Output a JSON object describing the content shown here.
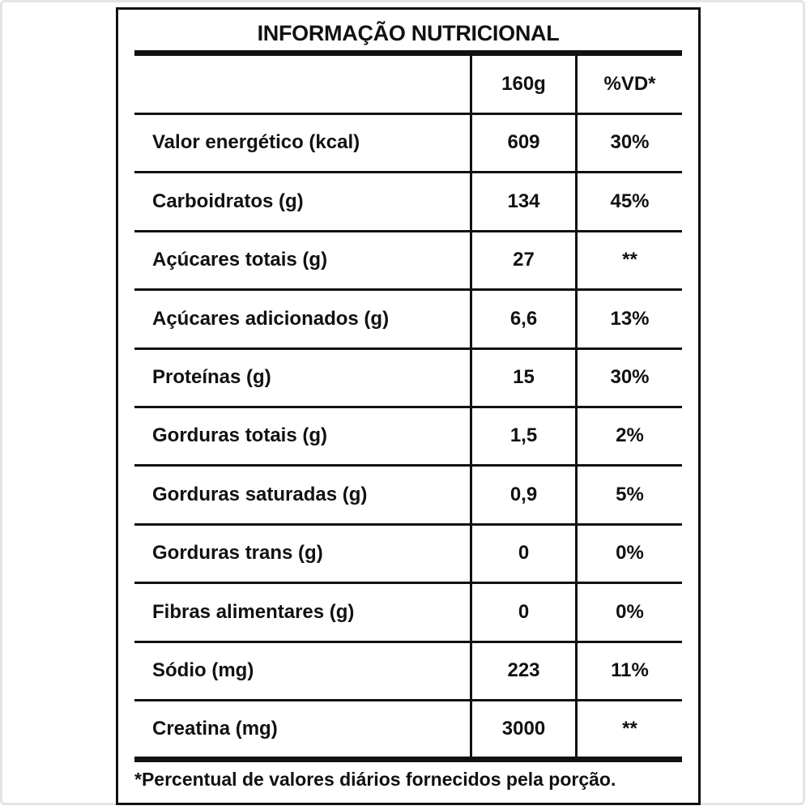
{
  "title": "INFORMAÇÃO NUTRICIONAL",
  "columns": {
    "nutrient": "",
    "portion": "160g",
    "daily_value": "%VD*"
  },
  "rows": [
    {
      "name": "Valor energético (kcal)",
      "qty": "609",
      "vd": "30%"
    },
    {
      "name": "Carboidratos (g)",
      "qty": "134",
      "vd": "45%"
    },
    {
      "name": "Açúcares totais (g)",
      "qty": "27",
      "vd": "**"
    },
    {
      "name": "Açúcares adicionados (g)",
      "qty": "6,6",
      "vd": "13%"
    },
    {
      "name": "Proteínas (g)",
      "qty": "15",
      "vd": "30%"
    },
    {
      "name": "Gorduras totais (g)",
      "qty": "1,5",
      "vd": "2%"
    },
    {
      "name": "Gorduras saturadas (g)",
      "qty": "0,9",
      "vd": "5%"
    },
    {
      "name": "Gorduras trans (g)",
      "qty": "0",
      "vd": "0%"
    },
    {
      "name": "Fibras alimentares (g)",
      "qty": "0",
      "vd": "0%"
    },
    {
      "name": "Sódio (mg)",
      "qty": "223",
      "vd": "11%"
    },
    {
      "name": "Creatina (mg)",
      "qty": "3000",
      "vd": "**"
    }
  ],
  "footnote": "*Percentual de valores diários fornecidos pela porção."
}
